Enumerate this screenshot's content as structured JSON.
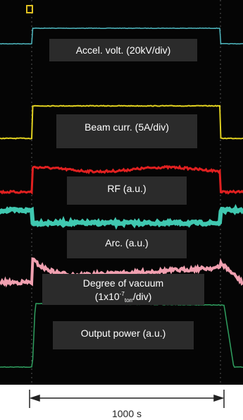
{
  "labels": {
    "accel": "Accel. volt. (20kV/div)",
    "beam": "Beam curr. (5A/div)",
    "rf": "RF (a.u.)",
    "arc": "Arc. (a.u.)",
    "vacuum": "Degree of vacuum",
    "vacuum_scale": {
      "prefix": "(1x10",
      "exponent": "-7",
      "unit": "torr",
      "suffix": "/div)"
    },
    "output": "Output power (a.u.)"
  },
  "scale_bar": "1000 s"
}
